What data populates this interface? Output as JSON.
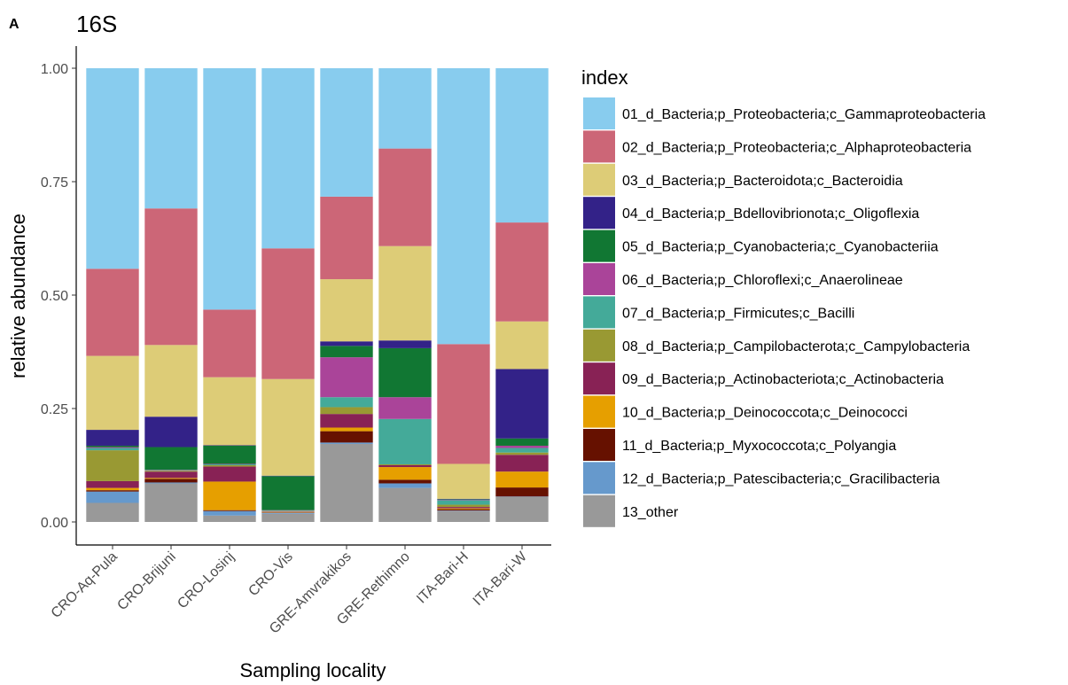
{
  "panel_label": "A",
  "chart_data": {
    "type": "bar",
    "stacked": true,
    "title": "16S",
    "xlabel": "Sampling locality",
    "ylabel": "relative abundance",
    "ylim": [
      0,
      1
    ],
    "yticks": [
      "0.00",
      "0.25",
      "0.50",
      "0.75",
      "1.00"
    ],
    "grid": false,
    "legend_title": "index",
    "legend_position": "right",
    "categories": [
      "CRO-Aq-Pula",
      "CRO-Brijuni",
      "CRO-Losinj",
      "CRO-Vis",
      "GRE-Amvrakikos",
      "GRE-Rethimno",
      "ITA-Bari-H",
      "ITA-Bari-W"
    ],
    "series": [
      {
        "name": "13_other",
        "color": "#999999",
        "values": [
          0.042,
          0.085,
          0.014,
          0.018,
          0.172,
          0.075,
          0.024,
          0.055
        ]
      },
      {
        "name": "12_d_Bacteria;p_Patescibacteria;c_Gracilibacteria",
        "color": "#6699CC",
        "values": [
          0.025,
          0.002,
          0.01,
          0.002,
          0.003,
          0.01,
          0.001,
          0.001
        ]
      },
      {
        "name": "11_d_Bacteria;p_Myxococcota;c_Polyangia",
        "color": "#661100",
        "values": [
          0.003,
          0.008,
          0.002,
          0.001,
          0.025,
          0.008,
          0.003,
          0.02
        ]
      },
      {
        "name": "10_d_Bacteria;p_Deinococcota;c_Deinococci",
        "color": "#E69F00",
        "values": [
          0.005,
          0.002,
          0.063,
          0.001,
          0.008,
          0.028,
          0.002,
          0.035
        ]
      },
      {
        "name": "09_d_Bacteria;p_Actinobacteriota;c_Actinobacteria",
        "color": "#882255",
        "values": [
          0.015,
          0.014,
          0.033,
          0.001,
          0.03,
          0.004,
          0.003,
          0.037
        ]
      },
      {
        "name": "08_d_Bacteria;p_Campilobacterota;c_Campylobacteria",
        "color": "#999933",
        "values": [
          0.068,
          0.002,
          0.003,
          0.001,
          0.015,
          0.002,
          0.005,
          0.005
        ]
      },
      {
        "name": "07_d_Bacteria;p_Firmicutes;c_Bacilli",
        "color": "#44AA99",
        "values": [
          0.005,
          0.001,
          0.002,
          0.001,
          0.022,
          0.1,
          0.01,
          0.01
        ]
      },
      {
        "name": "06_d_Bacteria;p_Chloroflexi;c_Anaerolineae",
        "color": "#AA4499",
        "values": [
          0.002,
          0.001,
          0.001,
          0.001,
          0.088,
          0.048,
          0.001,
          0.005
        ]
      },
      {
        "name": "05_d_Bacteria;p_Cyanobacteria;c_Cyanobacteriia",
        "color": "#117733",
        "values": [
          0.003,
          0.05,
          0.04,
          0.075,
          0.025,
          0.108,
          0.001,
          0.016
        ]
      },
      {
        "name": "04_d_Bacteria;p_Bdellovibrionota;c_Oligoflexia",
        "color": "#332288",
        "values": [
          0.035,
          0.067,
          0.001,
          0.001,
          0.01,
          0.017,
          0.001,
          0.153
        ]
      },
      {
        "name": "03_d_Bacteria;p_Bacteroidota;c_Bacteroidia",
        "color": "#DDCC77",
        "values": [
          0.163,
          0.158,
          0.15,
          0.213,
          0.137,
          0.208,
          0.077,
          0.105
        ]
      },
      {
        "name": "02_d_Bacteria;p_Proteobacteria;c_Alphaproteobacteria",
        "color": "#CC6677",
        "values": [
          0.192,
          0.301,
          0.149,
          0.288,
          0.182,
          0.215,
          0.264,
          0.218
        ]
      },
      {
        "name": "01_d_Bacteria;p_Proteobacteria;c_Gammaproteobacteria",
        "color": "#88CCEE",
        "values": [
          0.442,
          0.309,
          0.532,
          0.397,
          0.283,
          0.177,
          0.608,
          0.34
        ]
      }
    ],
    "legend_order": [
      "01_d_Bacteria;p_Proteobacteria;c_Gammaproteobacteria",
      "02_d_Bacteria;p_Proteobacteria;c_Alphaproteobacteria",
      "03_d_Bacteria;p_Bacteroidota;c_Bacteroidia",
      "04_d_Bacteria;p_Bdellovibrionota;c_Oligoflexia",
      "05_d_Bacteria;p_Cyanobacteria;c_Cyanobacteriia",
      "06_d_Bacteria;p_Chloroflexi;c_Anaerolineae",
      "07_d_Bacteria;p_Firmicutes;c_Bacilli",
      "08_d_Bacteria;p_Campilobacterota;c_Campylobacteria",
      "09_d_Bacteria;p_Actinobacteriota;c_Actinobacteria",
      "10_d_Bacteria;p_Deinococcota;c_Deinococci",
      "11_d_Bacteria;p_Myxococcota;c_Polyangia",
      "12_d_Bacteria;p_Patescibacteria;c_Gracilibacteria",
      "13_other"
    ]
  }
}
